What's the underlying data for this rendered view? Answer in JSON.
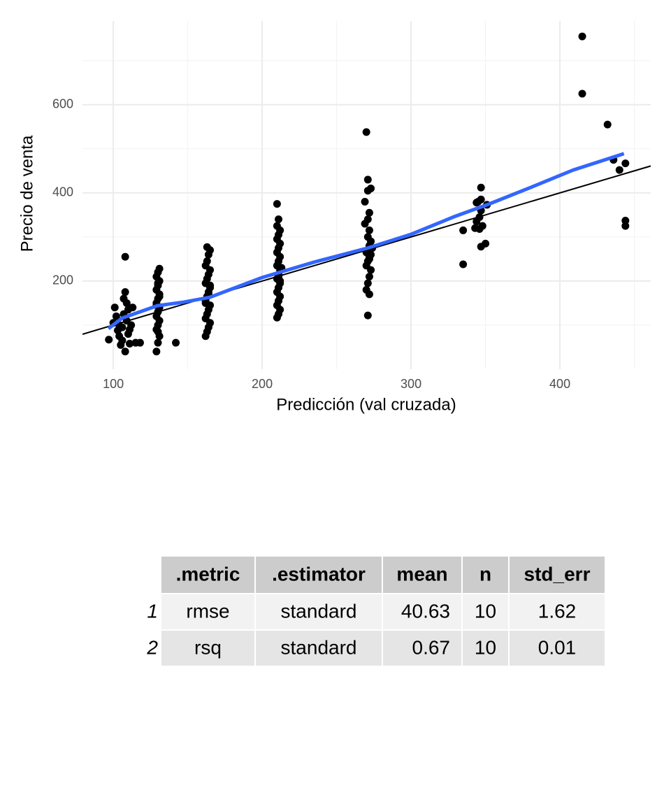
{
  "chart_data": {
    "type": "scatter",
    "x_label": "Predicción (val cruzada)",
    "y_label": "Precio de venta",
    "xlim": [
      79.3,
      461.0
    ],
    "ylim": [
      0,
      790
    ],
    "xticks": [
      100,
      200,
      300,
      400
    ],
    "yticks": [
      200,
      400,
      600
    ],
    "xminor": [
      150,
      250,
      350,
      450
    ],
    "yminor": [
      100,
      300,
      500,
      700
    ],
    "grid": true,
    "point_color": "#000000",
    "x": [
      97,
      100,
      101,
      102,
      103,
      104,
      105,
      106,
      107,
      107,
      108,
      108,
      108,
      109,
      110,
      110,
      111,
      112,
      113,
      115,
      118,
      104,
      106,
      109,
      111,
      129,
      130,
      131,
      129,
      130,
      131,
      129,
      130,
      131,
      129,
      130,
      131,
      129,
      130,
      131,
      129,
      130,
      131,
      130,
      129,
      131,
      130,
      142,
      162,
      163,
      164,
      165,
      162,
      163,
      164,
      165,
      162,
      163,
      164,
      165,
      162,
      163,
      164,
      165,
      162,
      163,
      164,
      165,
      163,
      162,
      164,
      165,
      210,
      211,
      212,
      210,
      211,
      212,
      210,
      211,
      212,
      210,
      211,
      212,
      210,
      211,
      212,
      210,
      211,
      212,
      210,
      211,
      212,
      210,
      211,
      210,
      212,
      211,
      213,
      271,
      272,
      270,
      271,
      272,
      273,
      270,
      271,
      272,
      273,
      270,
      271,
      272,
      273,
      271,
      272,
      269,
      271,
      272,
      269,
      271,
      273,
      271,
      270,
      272,
      274,
      335,
      335,
      343,
      344,
      344,
      346,
      346,
      347,
      347,
      347,
      347,
      350,
      351,
      345,
      348,
      415,
      415,
      432,
      436,
      440,
      444,
      444,
      444
    ],
    "values": [
      67,
      105,
      140,
      120,
      88,
      75,
      55,
      95,
      125,
      160,
      175,
      40,
      255,
      110,
      80,
      135,
      58,
      100,
      140,
      60,
      60,
      100,
      65,
      150,
      90,
      40,
      60,
      75,
      90,
      100,
      110,
      120,
      130,
      140,
      150,
      160,
      170,
      180,
      190,
      200,
      210,
      220,
      228,
      85,
      145,
      165,
      195,
      60,
      75,
      85,
      95,
      105,
      115,
      125,
      135,
      145,
      155,
      165,
      175,
      185,
      195,
      205,
      215,
      225,
      235,
      245,
      260,
      270,
      277,
      150,
      170,
      190,
      117,
      125,
      135,
      145,
      155,
      165,
      175,
      185,
      195,
      205,
      215,
      225,
      235,
      245,
      255,
      265,
      275,
      285,
      295,
      305,
      315,
      325,
      340,
      375,
      200,
      210,
      230,
      122,
      170,
      180,
      195,
      210,
      225,
      235,
      245,
      255,
      260,
      265,
      270,
      280,
      290,
      300,
      315,
      330,
      340,
      355,
      380,
      405,
      410,
      430,
      538,
      250,
      275,
      238,
      315,
      320,
      335,
      378,
      345,
      318,
      412,
      385,
      360,
      278,
      285,
      373,
      380,
      325,
      755,
      625,
      555,
      475,
      452,
      467,
      337,
      325
    ],
    "lines": [
      {
        "color": "#000000",
        "width": 2,
        "x": [
          79.3,
          461.0
        ],
        "values": [
          79.3,
          461.0
        ]
      },
      {
        "color": "#3366ff",
        "width": 5,
        "x": [
          96.7,
          106,
          129.6,
          147,
          164.8,
          200,
          235,
          271,
          300,
          329,
          352.6,
          380.8,
          409,
          443
        ],
        "values": [
          92,
          116,
          144,
          152,
          163,
          208,
          243,
          275,
          306,
          346,
          375,
          413,
          452,
          489
        ]
      }
    ]
  },
  "table": {
    "columns": [
      ".metric",
      ".estimator",
      "mean",
      "n",
      "std_err"
    ],
    "rows": [
      {
        "label": "1",
        "cells": [
          "rmse",
          "standard",
          "40.63",
          "10",
          "1.62"
        ]
      },
      {
        "label": "2",
        "cells": [
          "rsq",
          "standard",
          "0.67",
          "10",
          "0.01"
        ]
      }
    ]
  }
}
